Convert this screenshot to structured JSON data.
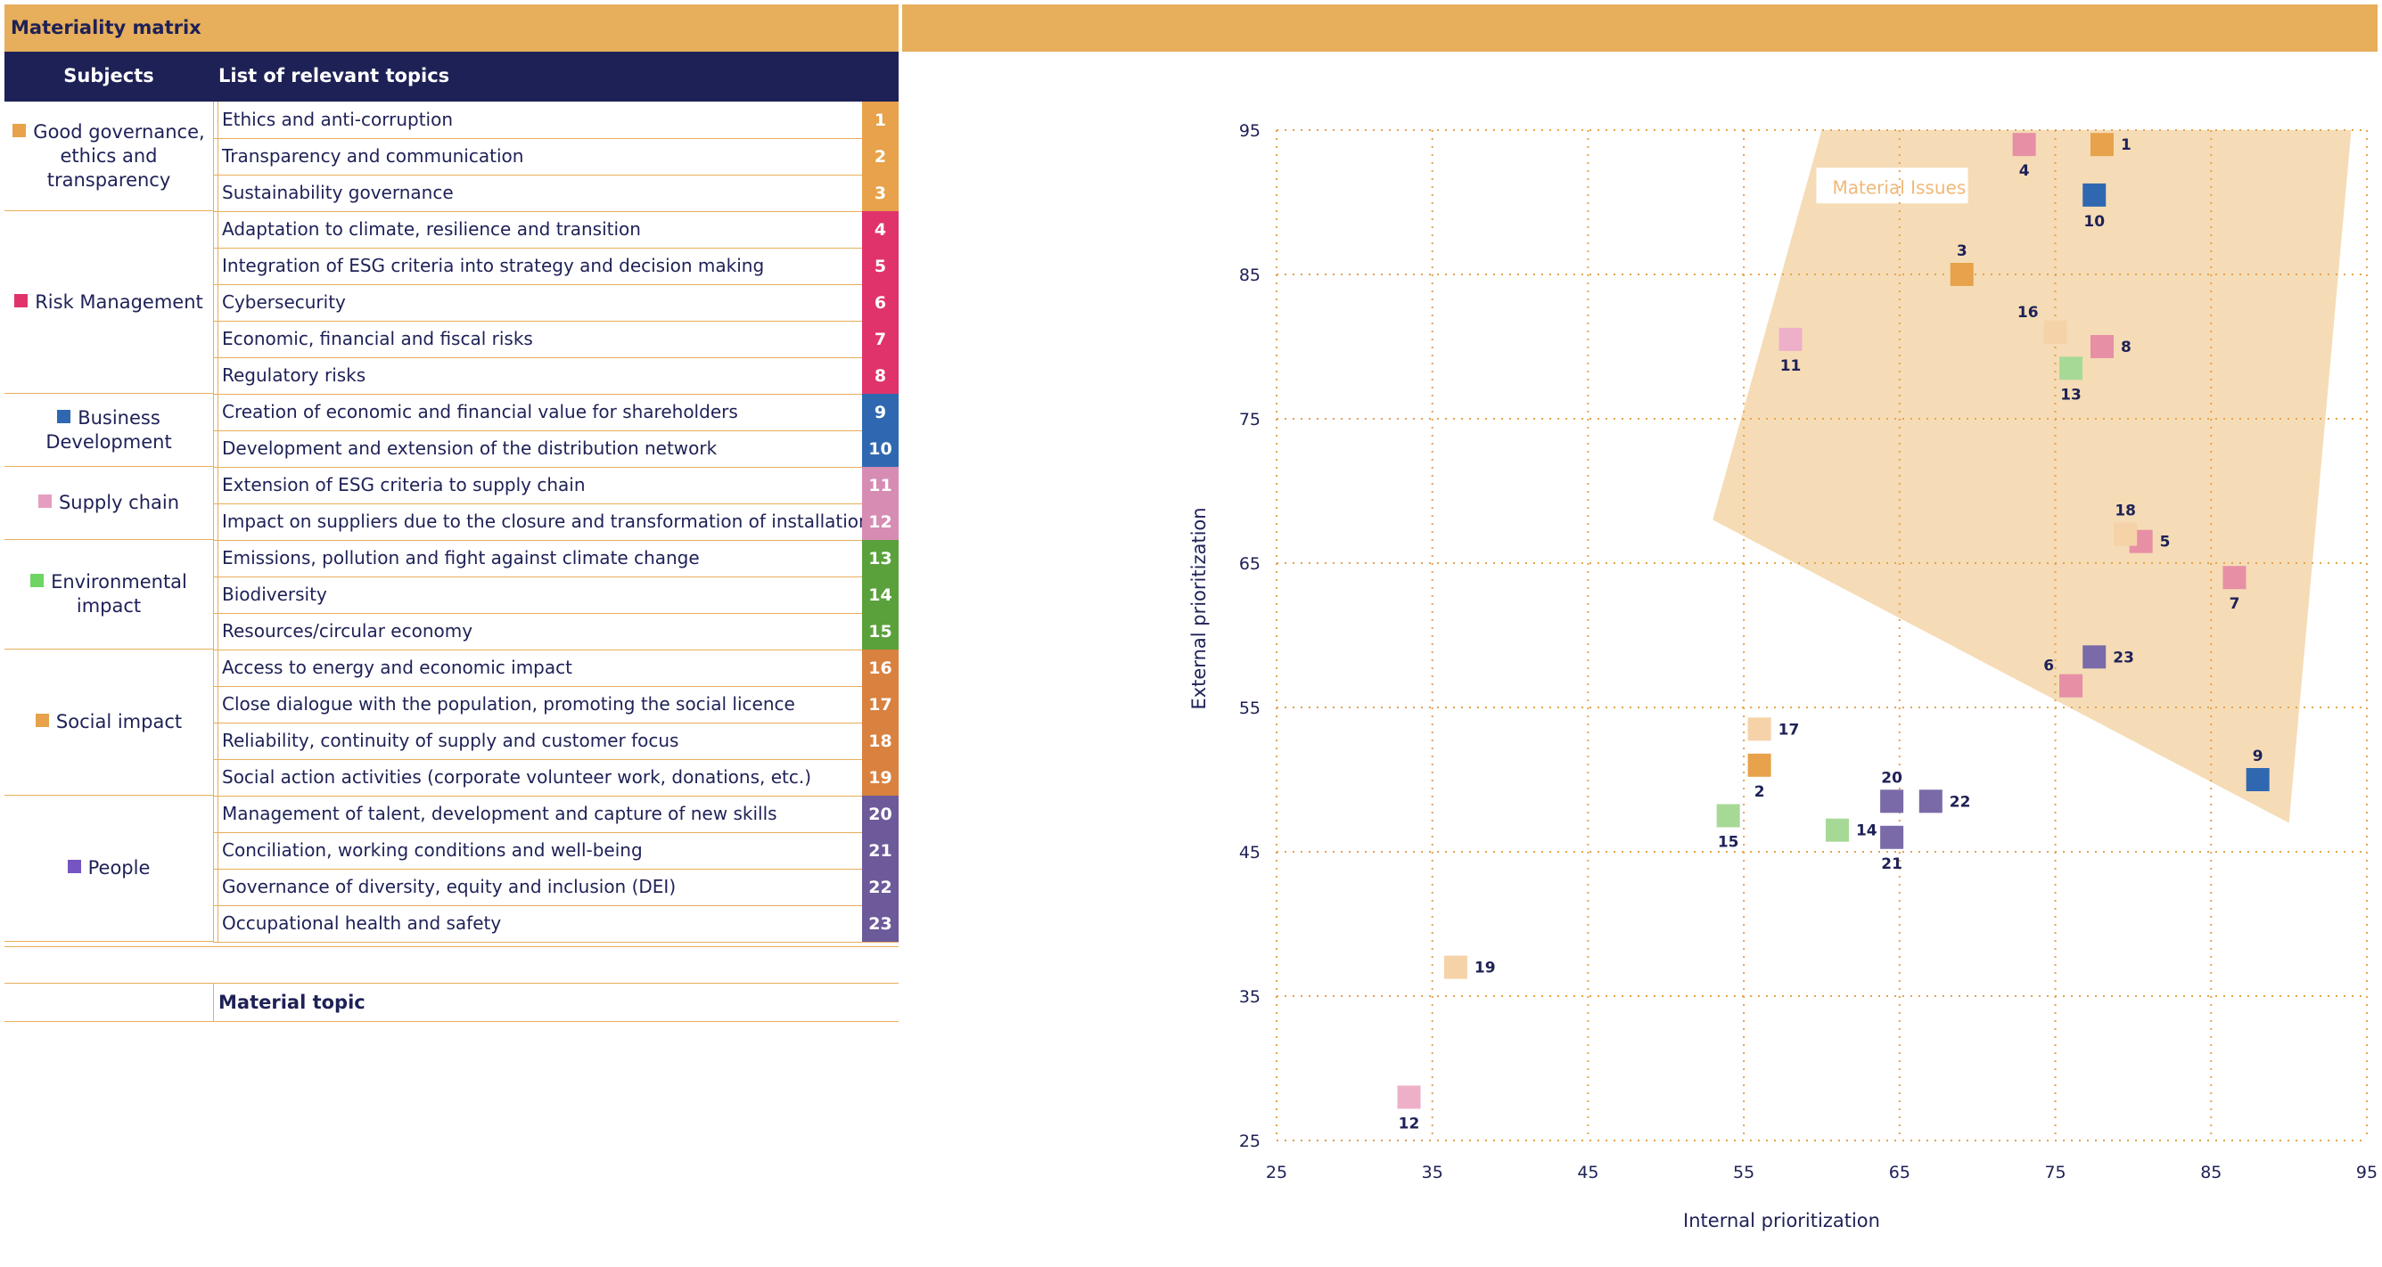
{
  "header": {
    "title": "Materiality matrix"
  },
  "table": {
    "col_subjects": "Subjects",
    "col_topics": "List of relevant topics",
    "groups": [
      {
        "label": "Good governance, ethics and transparency",
        "color": "#e7a24b",
        "rows": 3
      },
      {
        "label": "Risk Management",
        "color": "#e0336c",
        "rows": 5
      },
      {
        "label": "Business Development",
        "color": "#2f68b1",
        "rows": 2
      },
      {
        "label": "Supply chain",
        "color": "#e59ec0",
        "rows": 2
      },
      {
        "label": "Environmental impact",
        "color": "#6fd462",
        "rows": 3
      },
      {
        "label": "Social impact",
        "color": "#e7a24b",
        "rows": 4
      },
      {
        "label": "People",
        "color": "#7555c1",
        "rows": 4
      }
    ],
    "rows": [
      {
        "text": "Ethics and anti-corruption",
        "num": "1",
        "color": "#e7a24b"
      },
      {
        "text": "Transparency and communication",
        "num": "2",
        "color": "#e7a24b"
      },
      {
        "text": "Sustainability governance",
        "num": "3",
        "color": "#e7a24b"
      },
      {
        "text": "Adaptation to climate, resilience and transition",
        "num": "4",
        "color": "#e0336c"
      },
      {
        "text": "Integration of ESG criteria into strategy and decision making",
        "num": "5",
        "color": "#e0336c"
      },
      {
        "text": "Cybersecurity",
        "num": "6",
        "color": "#e0336c"
      },
      {
        "text": "Economic, financial and fiscal risks",
        "num": "7",
        "color": "#e0336c"
      },
      {
        "text": "Regulatory risks",
        "num": "8",
        "color": "#e0336c"
      },
      {
        "text": "Creation of economic and financial value for shareholders",
        "num": "9",
        "color": "#2f68b1"
      },
      {
        "text": "Development and extension of the distribution network",
        "num": "10",
        "color": "#2f68b1"
      },
      {
        "text": "Extension of ESG criteria to supply chain",
        "num": "11",
        "color": "#d68cb3"
      },
      {
        "text": "Impact on suppliers due to the closure and transformation of installations",
        "num": "12",
        "color": "#d68cb3"
      },
      {
        "text": "Emissions, pollution and fight against climate change",
        "num": "13",
        "color": "#5aa13b"
      },
      {
        "text": "Biodiversity",
        "num": "14",
        "color": "#5aa13b"
      },
      {
        "text": "Resources/circular economy",
        "num": "15",
        "color": "#5aa13b"
      },
      {
        "text": "Access to energy and economic impact",
        "num": "16",
        "color": "#d9813f"
      },
      {
        "text": "Close dialogue with the population, promoting the social licence",
        "num": "17",
        "color": "#d9813f"
      },
      {
        "text": "Reliability, continuity of supply and customer focus",
        "num": "18",
        "color": "#d9813f"
      },
      {
        "text": "Social action activities (corporate volunteer work, donations, etc.)",
        "num": "19",
        "color": "#d9813f"
      },
      {
        "text": "Management of talent, development and capture of new skills",
        "num": "20",
        "color": "#6d5a9a"
      },
      {
        "text": "Conciliation, working conditions and well-being",
        "num": "21",
        "color": "#6d5a9a"
      },
      {
        "text": "Governance of diversity, equity and inclusion (DEI)",
        "num": "22",
        "color": "#6d5a9a"
      },
      {
        "text": "Occupational health and safety",
        "num": "23",
        "color": "#6d5a9a"
      }
    ],
    "legend_label": "Material topic"
  },
  "chart_data": {
    "type": "scatter",
    "xlabel": "Internal prioritization",
    "ylabel": "External prioritization",
    "xlim": [
      25,
      95
    ],
    "ylim": [
      25,
      95
    ],
    "xticks": [
      "25",
      "35",
      "45",
      "55",
      "65",
      "75",
      "85",
      "95"
    ],
    "yticks": [
      "25",
      "35",
      "45",
      "55",
      "65",
      "75",
      "85",
      "95"
    ],
    "grid": true,
    "region": {
      "label": "Material Issues",
      "color": "#f5dcb6",
      "polygon": [
        [
          60,
          95
        ],
        [
          94,
          95
        ],
        [
          90,
          47
        ],
        [
          53,
          68
        ]
      ]
    },
    "points": [
      {
        "id": "1",
        "x": 78,
        "y": 94,
        "color": "#e7a24b"
      },
      {
        "id": "2",
        "x": 56,
        "y": 51,
        "color": "#e7a24b"
      },
      {
        "id": "3",
        "x": 69,
        "y": 85,
        "color": "#e7a24b"
      },
      {
        "id": "4",
        "x": 73,
        "y": 94,
        "color": "#e78fa5"
      },
      {
        "id": "5",
        "x": 80.5,
        "y": 66.5,
        "color": "#e78fa5"
      },
      {
        "id": "6",
        "x": 76,
        "y": 56.5,
        "color": "#e78fa5"
      },
      {
        "id": "7",
        "x": 86.5,
        "y": 64,
        "color": "#e78fa5"
      },
      {
        "id": "8",
        "x": 78,
        "y": 80,
        "color": "#e78fa5"
      },
      {
        "id": "9",
        "x": 88,
        "y": 50,
        "color": "#2f68b1"
      },
      {
        "id": "10",
        "x": 77.5,
        "y": 90.5,
        "color": "#2f68b1"
      },
      {
        "id": "11",
        "x": 58,
        "y": 80.5,
        "color": "#eeb0c8"
      },
      {
        "id": "12",
        "x": 33.5,
        "y": 28,
        "color": "#eeb0c8"
      },
      {
        "id": "13",
        "x": 76,
        "y": 78.5,
        "color": "#a7d996"
      },
      {
        "id": "14",
        "x": 61,
        "y": 46.5,
        "color": "#a7d996"
      },
      {
        "id": "15",
        "x": 54,
        "y": 47.5,
        "color": "#a7d996"
      },
      {
        "id": "16",
        "x": 75,
        "y": 81,
        "color": "#f5d2a8"
      },
      {
        "id": "17",
        "x": 56,
        "y": 53.5,
        "color": "#f5d2a8"
      },
      {
        "id": "18",
        "x": 79.5,
        "y": 67,
        "color": "#f5d2a8"
      },
      {
        "id": "19",
        "x": 36.5,
        "y": 37,
        "color": "#f5d2a8"
      },
      {
        "id": "20",
        "x": 64.5,
        "y": 48.5,
        "color": "#7a6aa8"
      },
      {
        "id": "21",
        "x": 64.5,
        "y": 46,
        "color": "#7a6aa8"
      },
      {
        "id": "22",
        "x": 67,
        "y": 48.5,
        "color": "#7a6aa8"
      },
      {
        "id": "23",
        "x": 77.5,
        "y": 58.5,
        "color": "#7a6aa8"
      }
    ]
  }
}
